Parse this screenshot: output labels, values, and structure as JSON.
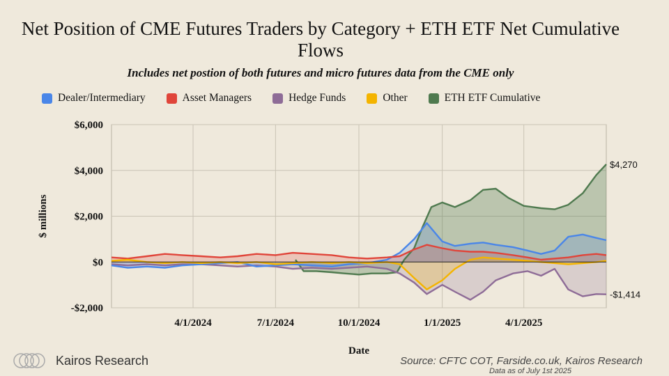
{
  "chart_data": {
    "type": "area",
    "title": "Net Position of CME Futures Traders by Category + ETH ETF Net Cumulative Flows",
    "subtitle": "Includes net postion of both futures and micro futures data from the CME only",
    "xlabel": "Date",
    "ylabel": "$ millions",
    "ylim": [
      -2000,
      6000
    ],
    "yticks": [
      -2000,
      0,
      2000,
      4000,
      6000
    ],
    "ytick_labels": [
      "-$2,000",
      "$0",
      "$2,000",
      "$4,000",
      "$6,000"
    ],
    "xlim": [
      "2024-01-02",
      "2025-07-01"
    ],
    "xticks": [
      "2024-04-01",
      "2024-07-01",
      "2024-10-01",
      "2025-01-01",
      "2025-04-01"
    ],
    "xtick_labels": [
      "4/1/2024",
      "7/1/2024",
      "10/1/2024",
      "1/1/2025",
      "4/1/2025"
    ],
    "grid": true,
    "legend_position": "top",
    "series": [
      {
        "name": "Dealer/Intermediary",
        "color": "#4a86e8",
        "x": [
          "2024-01-02",
          "2024-01-20",
          "2024-02-10",
          "2024-03-01",
          "2024-03-20",
          "2024-04-10",
          "2024-05-01",
          "2024-05-20",
          "2024-06-10",
          "2024-07-01",
          "2024-07-20",
          "2024-08-10",
          "2024-09-01",
          "2024-09-20",
          "2024-10-10",
          "2024-11-01",
          "2024-11-15",
          "2024-12-01",
          "2024-12-15",
          "2025-01-01",
          "2025-01-15",
          "2025-02-01",
          "2025-02-15",
          "2025-03-01",
          "2025-03-20",
          "2025-04-05",
          "2025-04-20",
          "2025-05-05",
          "2025-05-20",
          "2025-06-05",
          "2025-06-20",
          "2025-07-01"
        ],
        "values": [
          -150,
          -250,
          -200,
          -250,
          -150,
          -100,
          -50,
          0,
          -200,
          -150,
          -100,
          -150,
          -200,
          -100,
          -50,
          100,
          400,
          1000,
          1700,
          900,
          700,
          800,
          850,
          750,
          650,
          500,
          350,
          500,
          1100,
          1200,
          1050,
          950
        ]
      },
      {
        "name": "Asset Managers",
        "color": "#e0453a",
        "x": [
          "2024-01-02",
          "2024-01-20",
          "2024-02-10",
          "2024-03-01",
          "2024-03-20",
          "2024-04-10",
          "2024-05-01",
          "2024-05-20",
          "2024-06-10",
          "2024-07-01",
          "2024-07-20",
          "2024-08-10",
          "2024-09-01",
          "2024-09-20",
          "2024-10-10",
          "2024-11-01",
          "2024-11-15",
          "2024-12-01",
          "2024-12-15",
          "2025-01-01",
          "2025-01-15",
          "2025-02-01",
          "2025-02-15",
          "2025-03-01",
          "2025-03-20",
          "2025-04-05",
          "2025-04-20",
          "2025-05-05",
          "2025-05-20",
          "2025-06-05",
          "2025-06-20",
          "2025-07-01"
        ],
        "values": [
          200,
          150,
          250,
          350,
          300,
          250,
          200,
          250,
          350,
          300,
          400,
          350,
          300,
          200,
          150,
          200,
          250,
          550,
          750,
          600,
          500,
          450,
          450,
          400,
          300,
          200,
          100,
          150,
          200,
          300,
          350,
          300
        ]
      },
      {
        "name": "Hedge Funds",
        "color": "#8e6c97",
        "x": [
          "2024-01-02",
          "2024-01-20",
          "2024-02-10",
          "2024-03-01",
          "2024-03-20",
          "2024-04-10",
          "2024-05-01",
          "2024-05-20",
          "2024-06-10",
          "2024-07-01",
          "2024-07-20",
          "2024-08-10",
          "2024-09-01",
          "2024-09-20",
          "2024-10-10",
          "2024-11-01",
          "2024-11-15",
          "2024-12-01",
          "2024-12-15",
          "2025-01-01",
          "2025-01-15",
          "2025-02-01",
          "2025-02-15",
          "2025-03-01",
          "2025-03-20",
          "2025-04-05",
          "2025-04-20",
          "2025-05-05",
          "2025-05-20",
          "2025-06-05",
          "2025-06-20",
          "2025-07-01"
        ],
        "values": [
          -100,
          -150,
          -100,
          -150,
          -100,
          -100,
          -150,
          -200,
          -150,
          -200,
          -300,
          -250,
          -300,
          -250,
          -200,
          -300,
          -500,
          -900,
          -1400,
          -1000,
          -1300,
          -1650,
          -1300,
          -800,
          -500,
          -400,
          -600,
          -300,
          -1200,
          -1500,
          -1400,
          -1414
        ]
      },
      {
        "name": "Other",
        "color": "#f4b400",
        "x": [
          "2024-01-02",
          "2024-01-20",
          "2024-02-10",
          "2024-03-01",
          "2024-03-20",
          "2024-04-10",
          "2024-05-01",
          "2024-05-20",
          "2024-06-10",
          "2024-07-01",
          "2024-07-20",
          "2024-08-10",
          "2024-09-01",
          "2024-09-20",
          "2024-10-10",
          "2024-11-01",
          "2024-11-15",
          "2024-12-01",
          "2024-12-15",
          "2025-01-01",
          "2025-01-15",
          "2025-02-01",
          "2025-02-15",
          "2025-03-01",
          "2025-03-20",
          "2025-04-05",
          "2025-04-20",
          "2025-05-05",
          "2025-05-20",
          "2025-06-05",
          "2025-06-20",
          "2025-07-01"
        ],
        "values": [
          50,
          100,
          0,
          -50,
          0,
          -50,
          0,
          -50,
          0,
          -100,
          -50,
          0,
          -50,
          0,
          -50,
          0,
          -100,
          -700,
          -1200,
          -800,
          -300,
          100,
          200,
          150,
          100,
          50,
          0,
          -50,
          -100,
          -50,
          0,
          50
        ]
      },
      {
        "name": "ETH ETF Cumulative",
        "color": "#4f7a4f",
        "x": [
          "2024-07-23",
          "2024-08-01",
          "2024-08-15",
          "2024-09-01",
          "2024-09-15",
          "2024-10-01",
          "2024-10-15",
          "2024-11-01",
          "2024-11-12",
          "2024-11-20",
          "2024-12-01",
          "2024-12-10",
          "2024-12-20",
          "2025-01-01",
          "2025-01-15",
          "2025-02-01",
          "2025-02-15",
          "2025-03-01",
          "2025-03-15",
          "2025-04-01",
          "2025-04-20",
          "2025-05-05",
          "2025-05-20",
          "2025-06-05",
          "2025-06-20",
          "2025-07-01"
        ],
        "values": [
          100,
          -400,
          -400,
          -450,
          -500,
          -550,
          -500,
          -500,
          -450,
          100,
          600,
          1500,
          2400,
          2600,
          2400,
          2700,
          3150,
          3200,
          2800,
          2450,
          2350,
          2300,
          2500,
          3000,
          3800,
          4270
        ]
      }
    ],
    "annotations": [
      {
        "text": "$4,270",
        "series": "ETH ETF Cumulative",
        "value": 4270
      },
      {
        "text": "-$1,414",
        "series": "Hedge Funds",
        "value": -1414
      }
    ]
  },
  "footer": {
    "brand": "Kairos Research",
    "source": "Source: CFTC COT, Farside.co.uk, Kairos Research",
    "as_of": "Data as of July 1st 2025"
  }
}
